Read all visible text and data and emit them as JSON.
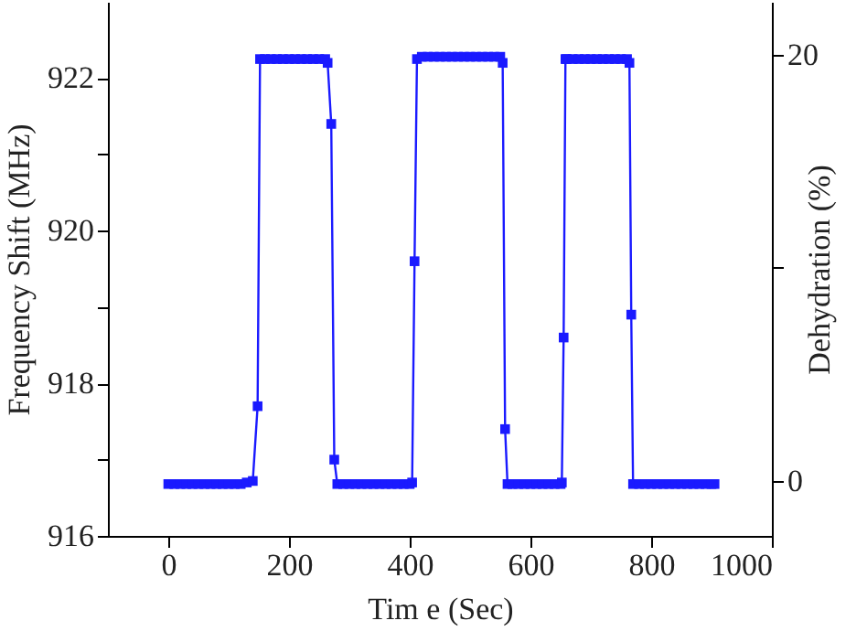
{
  "chart_data": {
    "type": "line",
    "xlabel": "Tim e (Sec)",
    "ylabel": "Frequency Shift (MHz)",
    "y2label": "Dehydration (%)",
    "x": [
      0,
      10,
      20,
      30,
      40,
      50,
      60,
      70,
      80,
      90,
      100,
      110,
      120,
      130,
      140,
      148,
      152,
      160,
      170,
      180,
      190,
      200,
      210,
      220,
      230,
      240,
      250,
      260,
      264,
      270,
      275,
      280,
      290,
      300,
      310,
      320,
      330,
      340,
      350,
      360,
      370,
      380,
      390,
      400,
      404,
      408,
      412,
      420,
      430,
      440,
      450,
      460,
      470,
      480,
      490,
      500,
      510,
      520,
      530,
      540,
      550,
      554,
      558,
      562,
      570,
      580,
      590,
      600,
      610,
      620,
      630,
      640,
      650,
      652,
      655,
      658,
      660,
      670,
      680,
      690,
      700,
      710,
      720,
      730,
      740,
      750,
      760,
      764,
      767,
      770,
      780,
      790,
      800,
      810,
      820,
      830,
      840,
      850,
      860,
      870,
      880,
      890,
      900,
      905
    ],
    "series": [
      {
        "color": "#1a1aff",
        "values": [
          916.68,
          916.68,
          916.68,
          916.68,
          916.68,
          916.68,
          916.68,
          916.68,
          916.68,
          916.68,
          916.68,
          916.68,
          916.68,
          916.7,
          916.72,
          917.7,
          922.25,
          922.25,
          922.25,
          922.25,
          922.25,
          922.25,
          922.25,
          922.25,
          922.25,
          922.25,
          922.25,
          922.25,
          922.2,
          921.4,
          917.0,
          916.68,
          916.68,
          916.68,
          916.68,
          916.68,
          916.68,
          916.68,
          916.68,
          916.68,
          916.68,
          916.68,
          916.68,
          916.68,
          916.7,
          919.6,
          922.25,
          922.28,
          922.28,
          922.28,
          922.28,
          922.28,
          922.28,
          922.28,
          922.28,
          922.28,
          922.28,
          922.28,
          922.28,
          922.28,
          922.28,
          922.2,
          917.4,
          916.68,
          916.68,
          916.68,
          916.68,
          916.68,
          916.68,
          916.68,
          916.68,
          916.68,
          916.68,
          916.7,
          918.6,
          922.25,
          922.25,
          922.25,
          922.25,
          922.25,
          922.25,
          922.25,
          922.25,
          922.25,
          922.25,
          922.25,
          922.25,
          922.2,
          918.9,
          916.68,
          916.68,
          916.68,
          916.68,
          916.68,
          916.68,
          916.68,
          916.68,
          916.68,
          916.68,
          916.68,
          916.68,
          916.68,
          916.68,
          916.68
        ]
      }
    ],
    "xlim": [
      -100,
      1000
    ],
    "xticks": [
      0,
      200,
      400,
      600,
      800,
      1000
    ],
    "ylim": [
      916,
      923
    ],
    "yticks": [
      916,
      {
        "value": 917,
        "label": null
      },
      918,
      {
        "value": 919,
        "label": null
      },
      920,
      {
        "value": 921,
        "label": null
      },
      922
    ],
    "y2lim": [
      -2.56,
      22.47
    ],
    "y2ticks": [
      0,
      {
        "value": 10,
        "label": null
      },
      20
    ],
    "marker": "square",
    "line_style": "solid",
    "grid": false
  }
}
